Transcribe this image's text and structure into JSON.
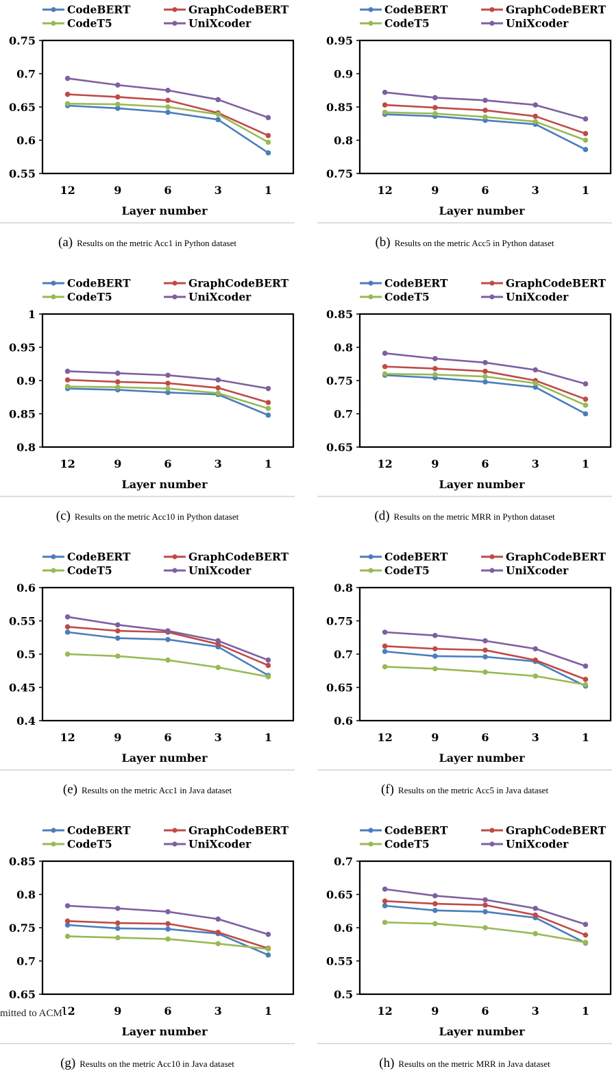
{
  "colors": {
    "CodeBERT": "#4a7ebb",
    "GraphCodeBERT": "#be4b48",
    "CodeT5": "#98b954",
    "UniXcoder": "#7d60a0",
    "axis": "#000000",
    "separator": "#bbbbbb"
  },
  "footer_fragment": "mitted to ACM",
  "chart_data": [
    {
      "type": "line",
      "panel": "(a)",
      "caption": "Results on the metric Acc1 in Python dataset",
      "xlabel": "Layer number",
      "categories": [
        "12",
        "9",
        "6",
        "3",
        "1"
      ],
      "ylim": [
        0.55,
        0.75
      ],
      "yticks": [
        "0.55",
        "0.6",
        "0.65",
        "0.7",
        "0.75"
      ],
      "legend_position": "top",
      "series": [
        {
          "name": "CodeBERT",
          "values": [
            0.652,
            0.648,
            0.642,
            0.631,
            0.581
          ]
        },
        {
          "name": "GraphCodeBERT",
          "values": [
            0.669,
            0.665,
            0.66,
            0.641,
            0.607
          ]
        },
        {
          "name": "CodeT5",
          "values": [
            0.655,
            0.654,
            0.65,
            0.639,
            0.597
          ]
        },
        {
          "name": "UniXcoder",
          "values": [
            0.693,
            0.683,
            0.675,
            0.661,
            0.634
          ]
        }
      ]
    },
    {
      "type": "line",
      "panel": "(b)",
      "caption": "Results on the metric Acc5 in Python dataset",
      "xlabel": "Layer number",
      "categories": [
        "12",
        "9",
        "6",
        "3",
        "1"
      ],
      "ylim": [
        0.75,
        0.95
      ],
      "yticks": [
        "0.75",
        "0.8",
        "0.85",
        "0.9",
        "0.95"
      ],
      "legend_position": "top",
      "series": [
        {
          "name": "CodeBERT",
          "values": [
            0.839,
            0.836,
            0.83,
            0.824,
            0.786
          ]
        },
        {
          "name": "GraphCodeBERT",
          "values": [
            0.853,
            0.849,
            0.845,
            0.836,
            0.81
          ]
        },
        {
          "name": "CodeT5",
          "values": [
            0.842,
            0.84,
            0.835,
            0.828,
            0.8
          ]
        },
        {
          "name": "UniXcoder",
          "values": [
            0.872,
            0.864,
            0.86,
            0.853,
            0.832
          ]
        }
      ]
    },
    {
      "type": "line",
      "panel": "(c)",
      "caption": "Results on the metric Acc10 in Python dataset",
      "xlabel": "Layer number",
      "categories": [
        "12",
        "9",
        "6",
        "3",
        "1"
      ],
      "ylim": [
        0.8,
        1.0
      ],
      "yticks": [
        "0.8",
        "0.85",
        "0.9",
        "0.95",
        "1"
      ],
      "legend_position": "top",
      "series": [
        {
          "name": "CodeBERT",
          "values": [
            0.888,
            0.886,
            0.882,
            0.879,
            0.848
          ]
        },
        {
          "name": "GraphCodeBERT",
          "values": [
            0.901,
            0.898,
            0.896,
            0.889,
            0.867
          ]
        },
        {
          "name": "CodeT5",
          "values": [
            0.891,
            0.89,
            0.888,
            0.881,
            0.858
          ]
        },
        {
          "name": "UniXcoder",
          "values": [
            0.914,
            0.911,
            0.908,
            0.901,
            0.888
          ]
        }
      ]
    },
    {
      "type": "line",
      "panel": "(d)",
      "caption": "Results on the metric MRR in Python dataset",
      "xlabel": "Layer number",
      "categories": [
        "12",
        "9",
        "6",
        "3",
        "1"
      ],
      "ylim": [
        0.65,
        0.85
      ],
      "yticks": [
        "0.65",
        "0.7",
        "0.75",
        "0.8",
        "0.85"
      ],
      "legend_position": "top",
      "series": [
        {
          "name": "CodeBERT",
          "values": [
            0.758,
            0.754,
            0.748,
            0.74,
            0.7
          ]
        },
        {
          "name": "GraphCodeBERT",
          "values": [
            0.771,
            0.768,
            0.764,
            0.75,
            0.722
          ]
        },
        {
          "name": "CodeT5",
          "values": [
            0.76,
            0.759,
            0.756,
            0.746,
            0.713
          ]
        },
        {
          "name": "UniXcoder",
          "values": [
            0.791,
            0.783,
            0.777,
            0.766,
            0.745
          ]
        }
      ]
    },
    {
      "type": "line",
      "panel": "(e)",
      "caption": "Results on the metric Acc1 in Java dataset",
      "xlabel": "Layer number",
      "categories": [
        "12",
        "9",
        "6",
        "3",
        "1"
      ],
      "ylim": [
        0.4,
        0.6
      ],
      "yticks": [
        "0.4",
        "0.45",
        "0.5",
        "0.55",
        "0.6"
      ],
      "legend_position": "top",
      "series": [
        {
          "name": "CodeBERT",
          "values": [
            0.533,
            0.524,
            0.522,
            0.511,
            0.468
          ]
        },
        {
          "name": "GraphCodeBERT",
          "values": [
            0.541,
            0.535,
            0.533,
            0.515,
            0.483
          ]
        },
        {
          "name": "CodeT5",
          "values": [
            0.5,
            0.497,
            0.491,
            0.48,
            0.466
          ]
        },
        {
          "name": "UniXcoder",
          "values": [
            0.556,
            0.544,
            0.535,
            0.52,
            0.491
          ]
        }
      ]
    },
    {
      "type": "line",
      "panel": "(f)",
      "caption": "Results on the metric Acc5 in Java dataset",
      "xlabel": "Layer number",
      "categories": [
        "12",
        "9",
        "6",
        "3",
        "1"
      ],
      "ylim": [
        0.6,
        0.8
      ],
      "yticks": [
        "0.6",
        "0.65",
        "0.7",
        "0.75",
        "0.8"
      ],
      "legend_position": "top",
      "series": [
        {
          "name": "CodeBERT",
          "values": [
            0.704,
            0.697,
            0.696,
            0.689,
            0.652
          ]
        },
        {
          "name": "GraphCodeBERT",
          "values": [
            0.712,
            0.708,
            0.706,
            0.691,
            0.662
          ]
        },
        {
          "name": "CodeT5",
          "values": [
            0.681,
            0.678,
            0.673,
            0.667,
            0.654
          ]
        },
        {
          "name": "UniXcoder",
          "values": [
            0.733,
            0.728,
            0.72,
            0.708,
            0.682
          ]
        }
      ]
    },
    {
      "type": "line",
      "panel": "(g)",
      "caption": "Results on the metric Acc10 in Java dataset",
      "xlabel": "Layer number",
      "categories": [
        "12",
        "9",
        "6",
        "3",
        "1"
      ],
      "ylim": [
        0.65,
        0.85
      ],
      "yticks": [
        "0.65",
        "0.7",
        "0.75",
        "0.8",
        "0.85"
      ],
      "legend_position": "top",
      "series": [
        {
          "name": "CodeBERT",
          "values": [
            0.754,
            0.749,
            0.748,
            0.741,
            0.709
          ]
        },
        {
          "name": "GraphCodeBERT",
          "values": [
            0.76,
            0.757,
            0.756,
            0.743,
            0.719
          ]
        },
        {
          "name": "CodeT5",
          "values": [
            0.737,
            0.735,
            0.733,
            0.726,
            0.718
          ]
        },
        {
          "name": "UniXcoder",
          "values": [
            0.783,
            0.779,
            0.774,
            0.763,
            0.74
          ]
        }
      ]
    },
    {
      "type": "line",
      "panel": "(h)",
      "caption": "Results on the metric MRR in Java dataset",
      "xlabel": "Layer number",
      "categories": [
        "12",
        "9",
        "6",
        "3",
        "1"
      ],
      "ylim": [
        0.5,
        0.7
      ],
      "yticks": [
        "0.5",
        "0.55",
        "0.6",
        "0.65",
        "0.7"
      ],
      "legend_position": "top",
      "series": [
        {
          "name": "CodeBERT",
          "values": [
            0.633,
            0.626,
            0.624,
            0.615,
            0.577
          ]
        },
        {
          "name": "GraphCodeBERT",
          "values": [
            0.64,
            0.636,
            0.634,
            0.619,
            0.589
          ]
        },
        {
          "name": "CodeT5",
          "values": [
            0.608,
            0.606,
            0.6,
            0.591,
            0.578
          ]
        },
        {
          "name": "UniXcoder",
          "values": [
            0.658,
            0.648,
            0.642,
            0.629,
            0.605
          ]
        }
      ]
    }
  ]
}
